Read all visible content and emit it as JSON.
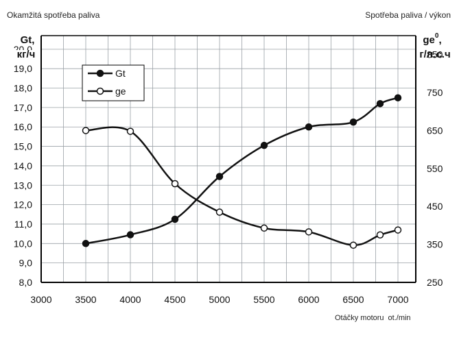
{
  "header": {
    "left": "Okamžitá spotřeba paliva",
    "right": "Spotřeba paliva / výkon"
  },
  "chart_data": {
    "type": "line",
    "title": "",
    "x": [
      3500,
      4000,
      4500,
      5000,
      5500,
      6000,
      6500,
      6800,
      7000
    ],
    "xlim": [
      3000,
      7000
    ],
    "x_ticks": [
      "3000",
      "3500",
      "4000",
      "4500",
      "5000",
      "5500",
      "6000",
      "6500",
      "7000"
    ],
    "xlabel": "Otáčky motoru",
    "xunit": "ot./min",
    "y_left": {
      "label_main": "Gt,",
      "label_unit": "кг/ч",
      "lim": [
        8.0,
        20.0
      ],
      "ticks": [
        "8,0",
        "9,0",
        "10,0",
        "11,0",
        "12,0",
        "13,0",
        "14,0",
        "15,0",
        "16,0",
        "17,0",
        "18,0",
        "19,0"
      ],
      "partial_tick": "20,0"
    },
    "y_right": {
      "label_main": "ge",
      "label_sup": "0",
      "label_comma": ",",
      "label_unit": "г/л.с.ч",
      "lim": [
        250,
        900
      ],
      "ticks": [
        "250",
        "350",
        "450",
        "550",
        "650",
        "750",
        "850"
      ]
    },
    "grid": true,
    "legend_position": "top-left",
    "series": [
      {
        "name": "Gt",
        "axis": "left",
        "marker": "filled",
        "values": [
          10.0,
          10.45,
          11.25,
          13.45,
          15.05,
          16.0,
          16.25,
          17.2,
          17.5
        ]
      },
      {
        "name": "ge",
        "axis": "right",
        "marker": "open",
        "values": [
          650,
          648,
          510,
          435,
          393,
          383,
          348,
          375,
          388
        ]
      }
    ],
    "colors": {
      "line": "#111111",
      "grid": "#9aa0a6",
      "frame": "#000000"
    }
  }
}
